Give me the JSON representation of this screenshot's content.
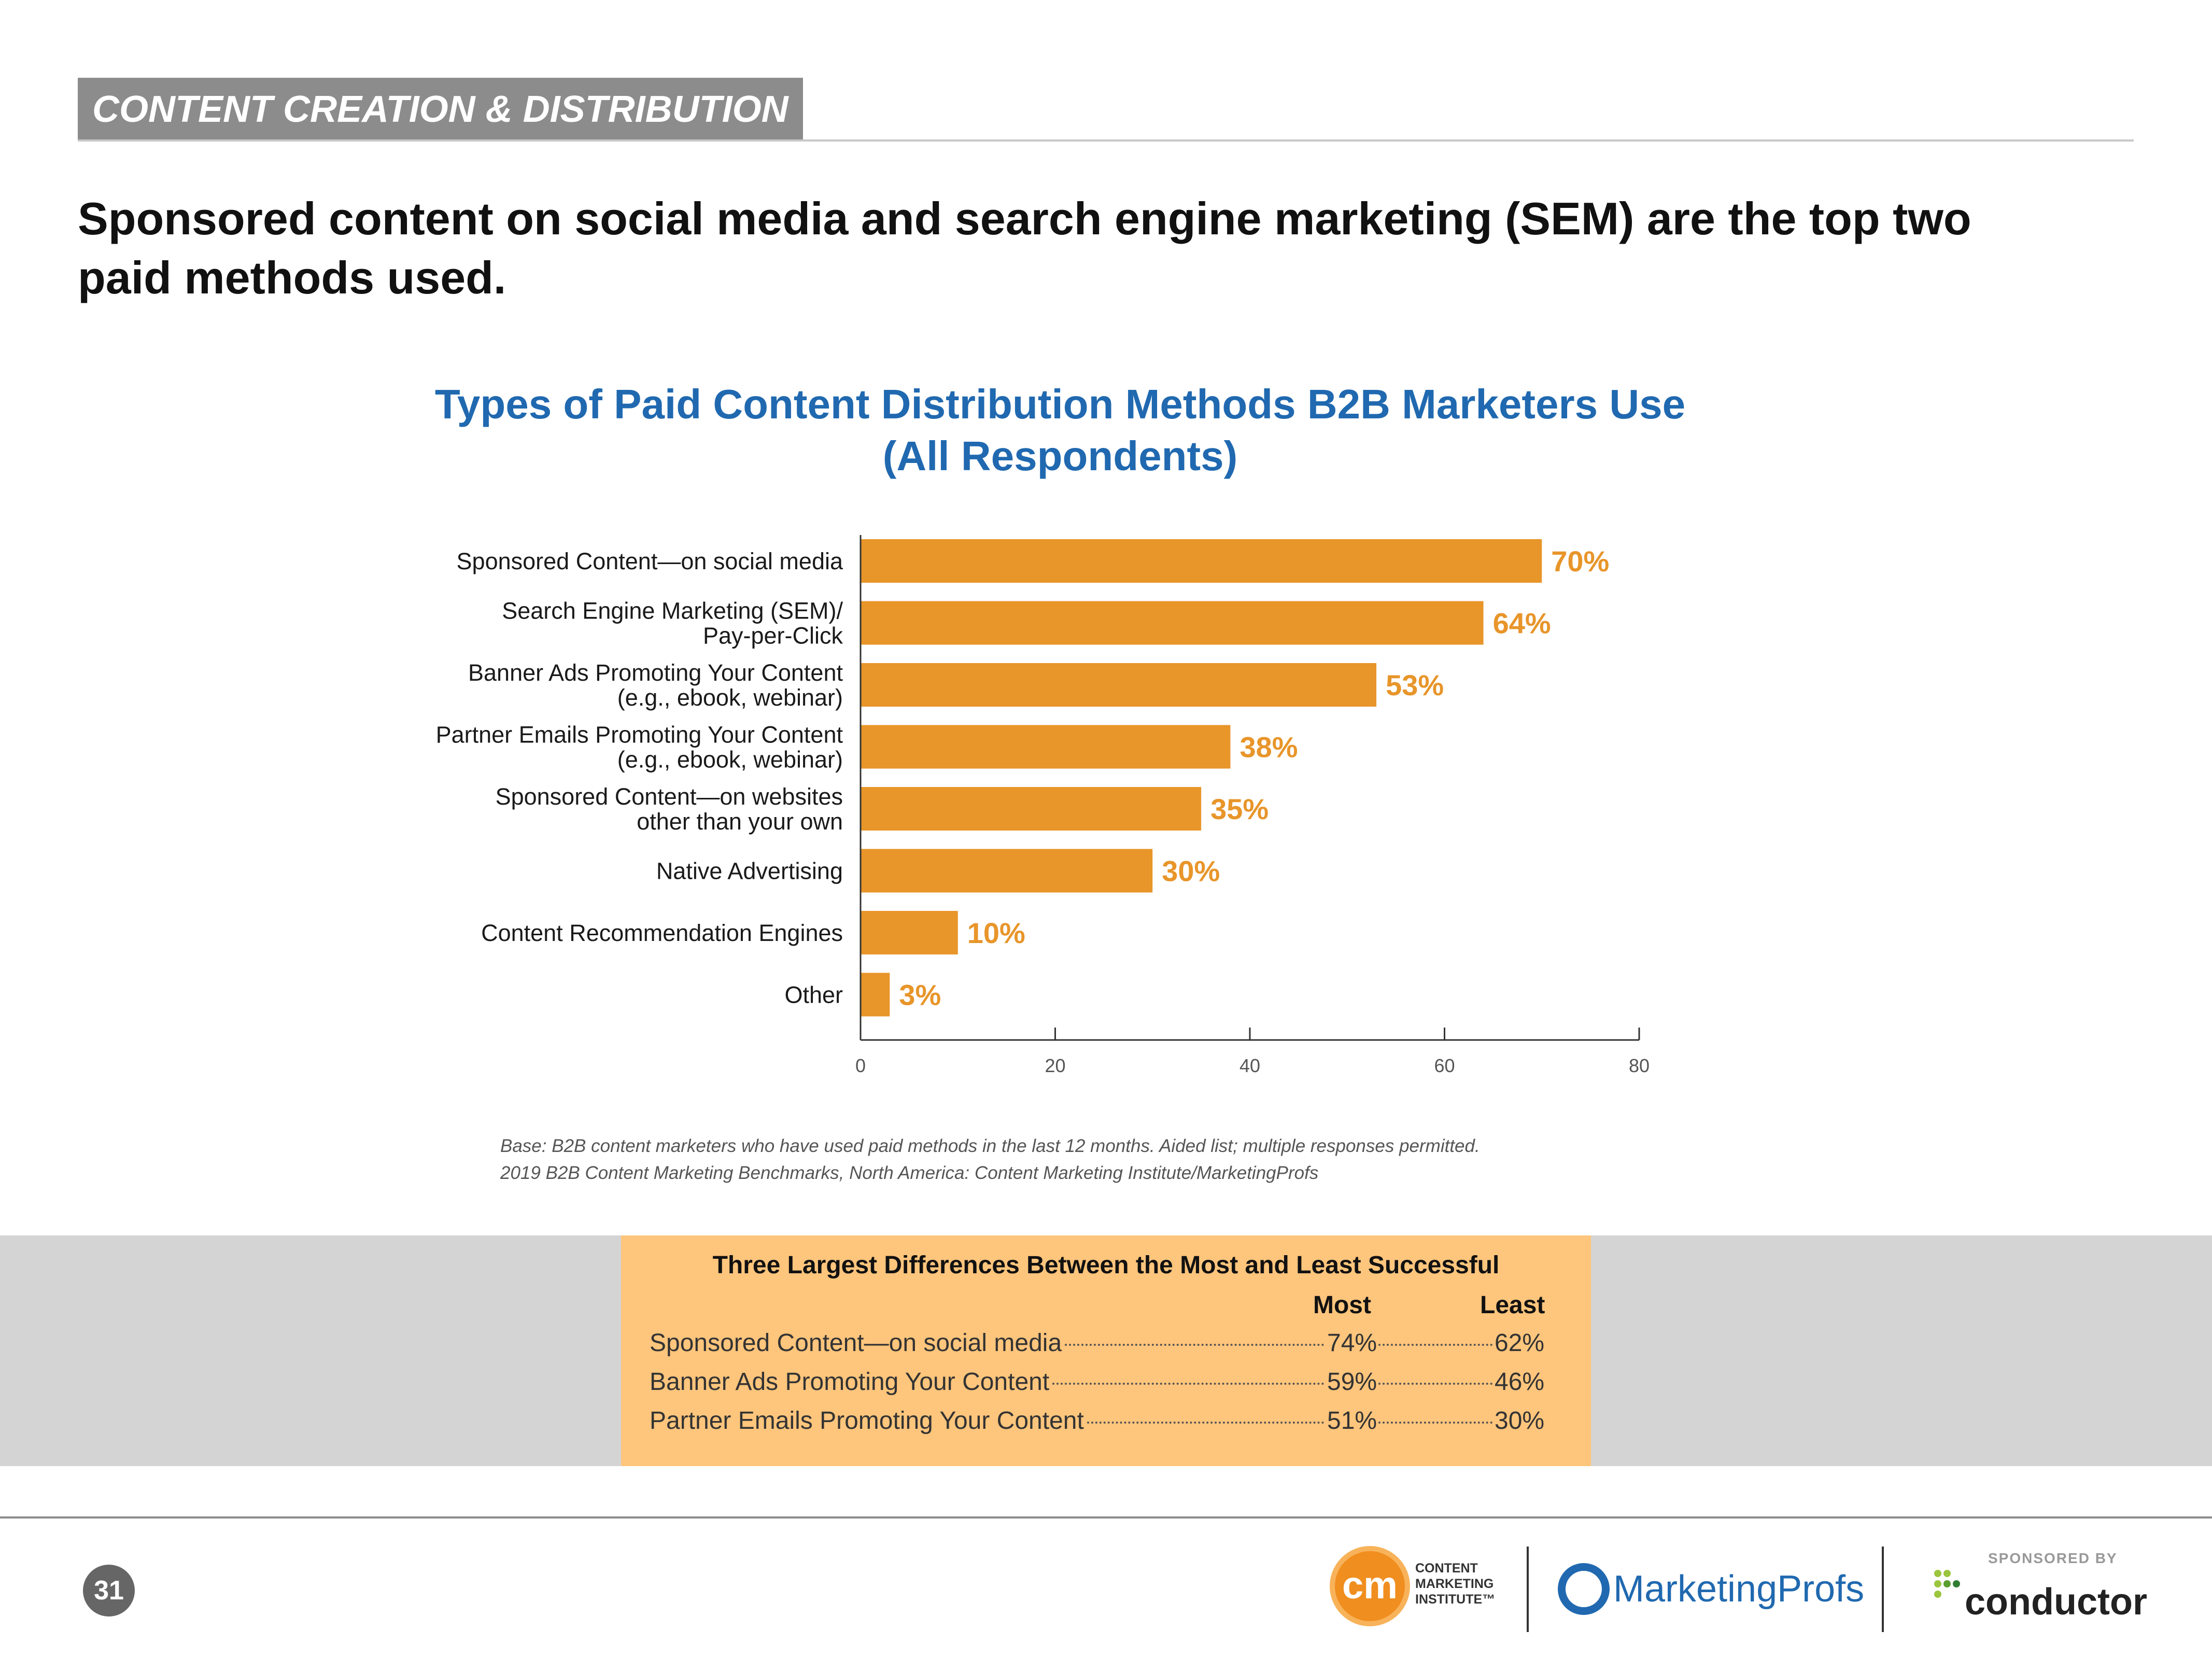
{
  "header": {
    "section_tag": "CONTENT CREATION & DISTRIBUTION",
    "headline_line1": "Sponsored content on social media and search engine marketing (SEM) are the top two",
    "headline_line2": "paid methods used."
  },
  "chart_data": {
    "type": "bar",
    "orientation": "horizontal",
    "title": "Types of Paid Content Distribution Methods B2B Marketers Use",
    "subtitle": "(All Respondents)",
    "categories": [
      [
        "Sponsored Content—on social media"
      ],
      [
        "Search Engine Marketing (SEM)/",
        "Pay-per-Click"
      ],
      [
        "Banner Ads Promoting Your Content",
        "(e.g., ebook, webinar)"
      ],
      [
        "Partner Emails Promoting Your Content",
        "(e.g., ebook, webinar)"
      ],
      [
        "Sponsored Content—on websites",
        "other than your own"
      ],
      [
        "Native Advertising"
      ],
      [
        "Content Recommendation Engines"
      ],
      [
        "Other"
      ]
    ],
    "values": [
      70,
      64,
      53,
      38,
      35,
      30,
      10,
      3
    ],
    "value_labels": [
      "70%",
      "64%",
      "53%",
      "38%",
      "35%",
      "30%",
      "10%",
      "3%"
    ],
    "xlim": [
      0,
      80
    ],
    "xticks": [
      "0",
      "20",
      "40",
      "60",
      "80"
    ],
    "xlabel": "",
    "ylabel": "",
    "bar_color": "#e8952a",
    "grid": false
  },
  "footnote": {
    "line1": "Base: B2B content marketers who have used paid methods in the last 12 months. Aided list; multiple responses permitted.",
    "line2": "2019 B2B Content Marketing Benchmarks, North America: Content Marketing Institute/MarketingProfs"
  },
  "differences": {
    "title": "Three Largest Differences Between the Most and Least Successful",
    "col_most": "Most",
    "col_least": "Least",
    "rows": [
      {
        "label": "Sponsored Content—on social media",
        "most": "74%",
        "least": "62%"
      },
      {
        "label": "Banner Ads Promoting Your Content",
        "most": "59%",
        "least": "46%"
      },
      {
        "label": "Partner Emails Promoting Your Content",
        "most": "51%",
        "least": "30%"
      }
    ]
  },
  "footer": {
    "page_number": "31",
    "cmi_mark": "cm",
    "cmi_line1": "CONTENT",
    "cmi_line2": "MARKETING",
    "cmi_line3": "INSTITUTE™",
    "marketingprofs": "MarketingProfs",
    "sponsored_by": "SPONSORED BY",
    "conductor": "conductor",
    "accent_orange": "#e8952a",
    "accent_blue": "#2069b0"
  }
}
